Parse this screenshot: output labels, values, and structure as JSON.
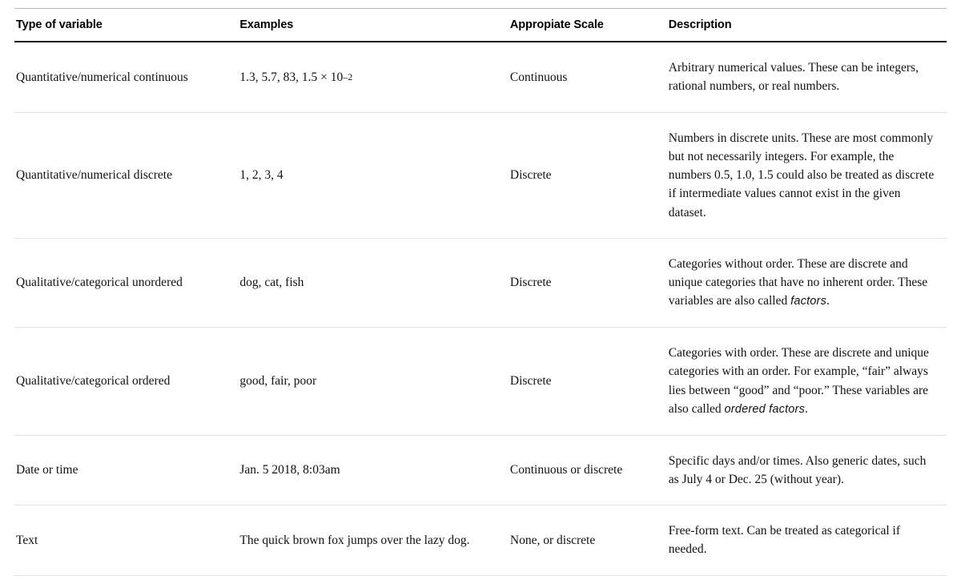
{
  "table": {
    "headers": {
      "type": "Type of variable",
      "examples": "Examples",
      "scale": "Appropiate Scale",
      "description": "Description"
    },
    "rows": [
      {
        "type": "Quantitative/numerical continuous",
        "examples_html": "1.3, 5.7, 83, 1.5 × 10<span class=\"sup-neg\">–2</span>",
        "scale": "Continuous",
        "description_html": "Arbitrary numerical values. These can be integers, rational numbers, or real numbers."
      },
      {
        "type": "Quantitative/numerical discrete",
        "examples_html": "1, 2, 3, 4",
        "scale": "Discrete",
        "description_html": "Numbers in discrete units. These are most commonly but not necessarily integers. For example, the numbers 0.5, 1.0, 1.5 could also be treated as discrete if intermediate values cannot exist in the given dataset."
      },
      {
        "type": "Qualitative/categorical unordered",
        "examples_html": "dog, cat, fish",
        "scale": "Discrete",
        "description_html": "Categories without order. These are discrete and unique categories that have no inherent order. These variables are also called <em class=\"term\">factors</em>."
      },
      {
        "type": "Qualitative/categorical ordered",
        "examples_html": "good, fair, poor",
        "scale": "Discrete",
        "description_html": "Categories with order. These are discrete and unique categories with an order. For example, “fair” always lies between “good” and “poor.” These variables are also called <em class=\"term\">ordered factors</em>."
      },
      {
        "type": "Date or time",
        "examples_html": "Jan. 5 2018, 8:03am",
        "scale": "Continuous or discrete",
        "description_html": "Specific days and/or times. Also generic dates, such as July 4 or Dec. 25 (without year)."
      },
      {
        "type": "Text",
        "examples_html": "The quick brown fox jumps over the lazy dog.",
        "scale": "None, or discrete",
        "description_html": "Free-form text. Can be treated as categorical if needed."
      }
    ],
    "style": {
      "body_font": "Georgia serif",
      "header_font": "Helvetica sans-serif",
      "header_font_size_pt": 11,
      "body_font_size_pt": 12,
      "border_top_color": "#b8b8b8",
      "header_border_bottom_color": "#1a1a1a",
      "row_border_color": "#e4e4e4",
      "text_color": "#111111",
      "background_color": "#ffffff",
      "column_widths_pct": [
        24,
        29,
        17,
        30
      ]
    }
  }
}
